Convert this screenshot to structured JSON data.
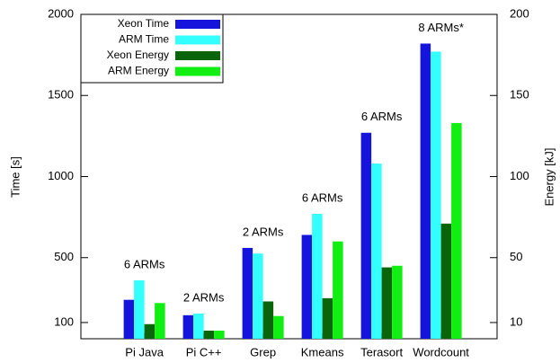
{
  "chart_data": {
    "type": "bar",
    "categories": [
      "Pi Java",
      "Pi C++",
      "Grep",
      "Kmeans",
      "Terasort",
      "Wordcount"
    ],
    "annotations": [
      "6 ARMs",
      "2 ARMs",
      "2 ARMs",
      "6 ARMs",
      "6 ARMs",
      "8 ARMs*"
    ],
    "y_label": "Time [s]",
    "y2_label": "Energy [kJ]",
    "ylim": [
      0,
      2000
    ],
    "yticks": [
      100,
      500,
      1000,
      1500,
      2000
    ],
    "y2lim": [
      0,
      200
    ],
    "y2ticks": [
      10,
      50,
      100,
      150,
      200
    ],
    "legend": "top-left",
    "series": [
      {
        "name": "Xeon Time",
        "color": "#1414dc",
        "values": [
          240,
          145,
          560,
          640,
          1270,
          1820
        ]
      },
      {
        "name": "ARM Time",
        "color": "#33ffff",
        "values": [
          360,
          155,
          525,
          770,
          1080,
          1770
        ]
      },
      {
        "name": "Xeon Energy",
        "color": "#0a640a",
        "axis": "y2",
        "values": [
          9,
          5,
          23,
          25,
          44,
          71
        ]
      },
      {
        "name": "ARM Energy",
        "color": "#11ee11",
        "axis": "y2",
        "values": [
          22,
          5,
          14,
          60,
          45,
          133
        ]
      }
    ]
  }
}
